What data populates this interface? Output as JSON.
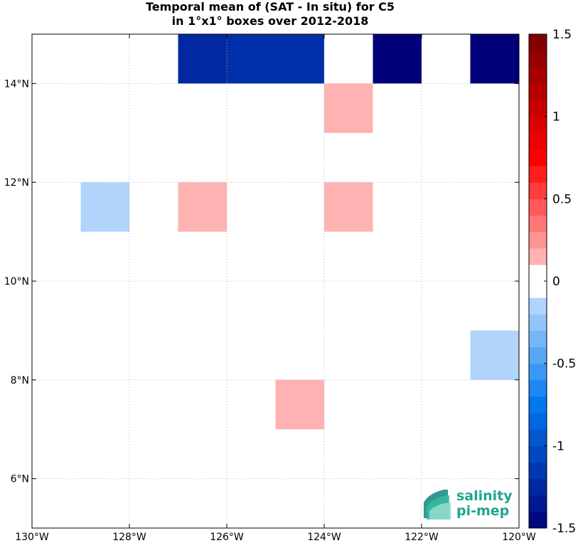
{
  "chart_data": {
    "type": "heatmap",
    "title_lines": [
      "Temporal mean of (SAT - In situ) for C5",
      "in 1°x1° boxes over 2012-2018"
    ],
    "xlabel": "",
    "ylabel": "",
    "xlim": [
      -130,
      -120
    ],
    "ylim": [
      5,
      15
    ],
    "x_ticks": [
      {
        "value": -130,
        "label": "130°W"
      },
      {
        "value": -128,
        "label": "128°W"
      },
      {
        "value": -126,
        "label": "126°W"
      },
      {
        "value": -124,
        "label": "124°W"
      },
      {
        "value": -122,
        "label": "122°W"
      },
      {
        "value": -120,
        "label": "120°W"
      }
    ],
    "y_ticks": [
      {
        "value": 6,
        "label": "6°N"
      },
      {
        "value": 8,
        "label": "8°N"
      },
      {
        "value": 10,
        "label": "10°N"
      },
      {
        "value": 12,
        "label": "12°N"
      },
      {
        "value": 14,
        "label": "14°N"
      }
    ],
    "grid": true,
    "cells": [
      {
        "lon": -127,
        "lat": 14,
        "value": -1.25
      },
      {
        "lon": -126,
        "lat": 14,
        "value": -1.2
      },
      {
        "lon": -125,
        "lat": 14,
        "value": -1.2
      },
      {
        "lon": -123,
        "lat": 14,
        "value": -1.5
      },
      {
        "lon": -121,
        "lat": 14,
        "value": -1.5
      },
      {
        "lon": -124,
        "lat": 13,
        "value": 0.15
      },
      {
        "lon": -129,
        "lat": 11,
        "value": -0.15
      },
      {
        "lon": -127,
        "lat": 11,
        "value": 0.15
      },
      {
        "lon": -124,
        "lat": 11,
        "value": 0.15
      },
      {
        "lon": -121,
        "lat": 8,
        "value": -0.15
      },
      {
        "lon": -125,
        "lat": 7,
        "value": 0.15
      }
    ],
    "colorbar": {
      "range": [
        -1.5,
        1.5
      ],
      "levels": 30,
      "ticks": [
        1.5,
        1,
        0.5,
        0,
        -0.5,
        -1,
        -1.5
      ],
      "tick_labels": [
        "1.5",
        "1",
        "0.5",
        "0",
        "-0.5",
        "-1",
        "-1.5"
      ],
      "colors": {
        "low_end": "#00007a",
        "low_mid": "#0078f0",
        "near_zero": "#ffffff",
        "high_mid": "#ff0000",
        "high_end": "#7a0000"
      }
    }
  },
  "logo": {
    "line1": "salinity",
    "line2": "pi-mep",
    "color": "#1fa58f"
  }
}
